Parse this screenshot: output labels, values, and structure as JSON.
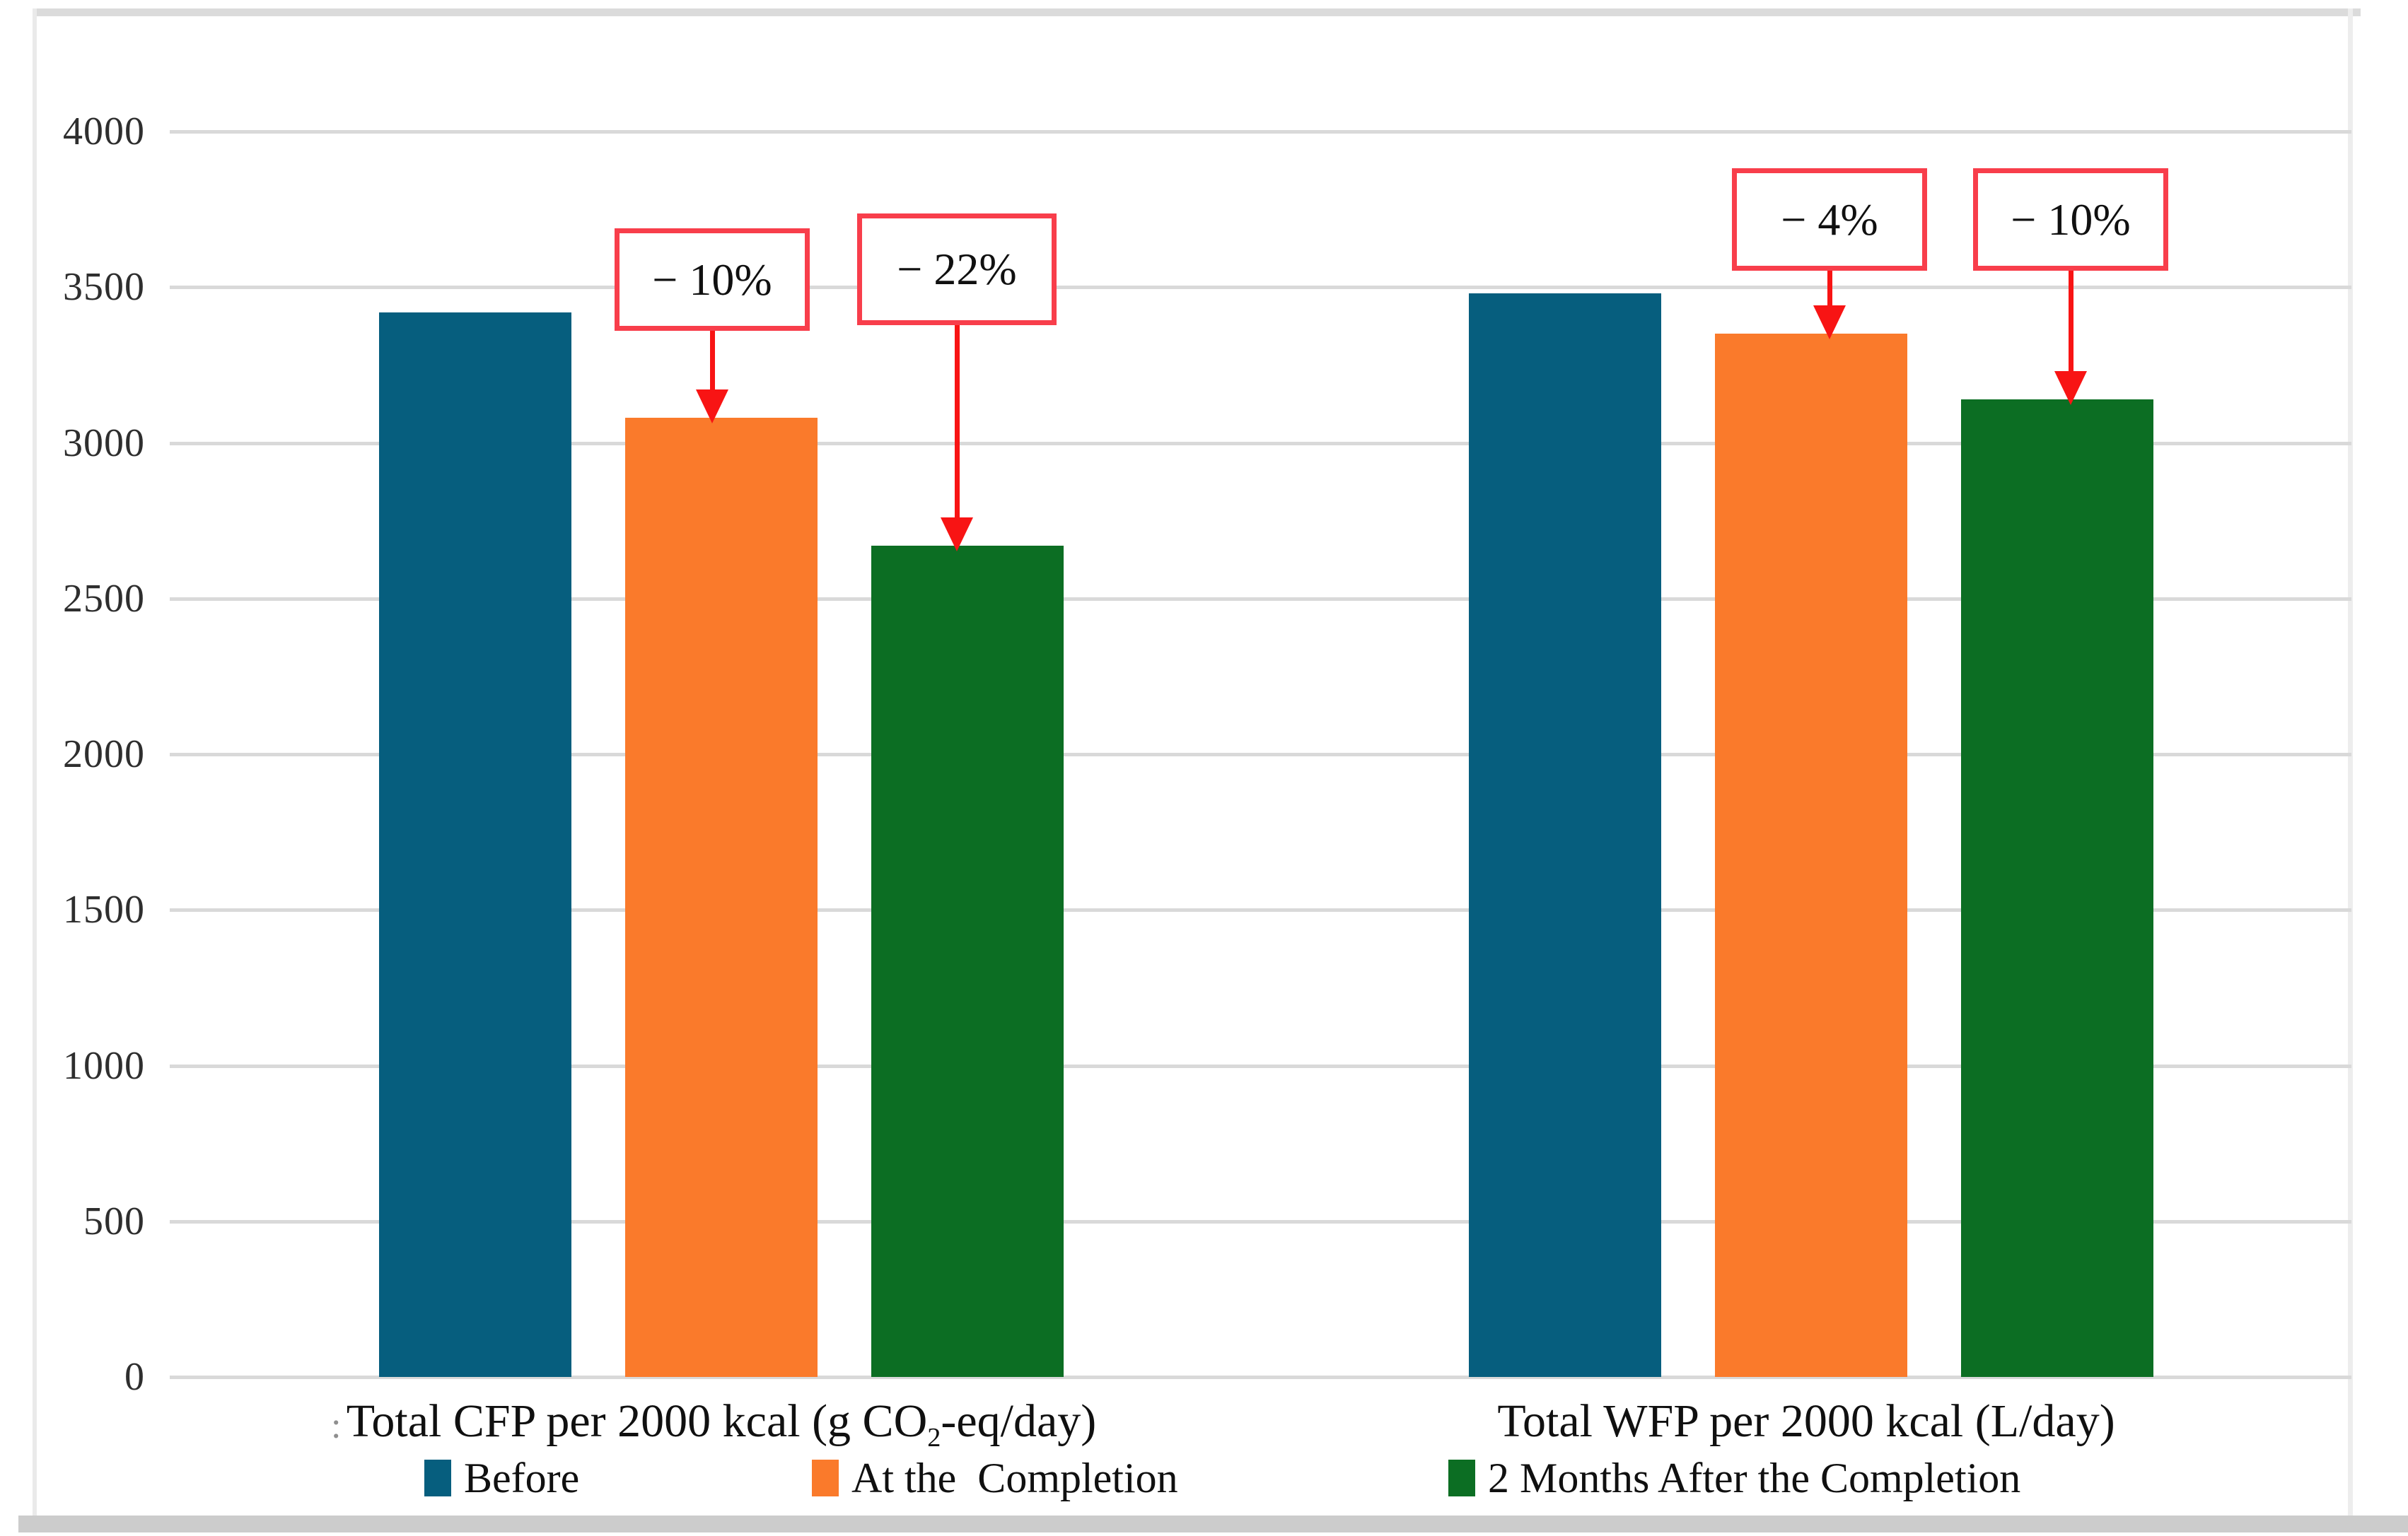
{
  "chart_data": {
    "type": "bar",
    "title": "",
    "categories": [
      {
        "label": "Total CFP per 2000 kcal (g CO2-eq/day)",
        "parts": [
          "Total CFP per 2000 kcal (g CO",
          "2",
          "-eq/day)"
        ]
      },
      {
        "label": "Total WFP per 2000 kcal (L/day)",
        "parts": [
          "Total WFP per 2000 kcal (L/day)"
        ]
      }
    ],
    "series": [
      {
        "name": "Before",
        "color": "#065E7E",
        "values": [
          3420,
          3480
        ]
      },
      {
        "name": "At the  Completion",
        "color": "#FA7A2B",
        "values": [
          3080,
          3350
        ]
      },
      {
        "name": "2 Months After the Completion",
        "color": "#0C6E23",
        "values": [
          2670,
          3140
        ]
      }
    ],
    "annotations": [
      {
        "text": "− 10%",
        "category": 0,
        "series": 1
      },
      {
        "text": "− 22%",
        "category": 0,
        "series": 2
      },
      {
        "text": "− 4%",
        "category": 1,
        "series": 1
      },
      {
        "text": "− 10%",
        "category": 1,
        "series": 2
      }
    ],
    "y_axis": {
      "min": 0,
      "max": 4000,
      "step": 500,
      "ticks": [
        "0",
        "500",
        "1000",
        "1500",
        "2000",
        "2500",
        "3000",
        "3500",
        "4000"
      ]
    },
    "grid": "horizontal-only",
    "legend_position": "bottom",
    "colors": {
      "annotation_border": "#F83E4B",
      "arrow": "#F81414",
      "gridline": "#D9D9D9",
      "tick_text": "#2E2E2E",
      "label_text": "#101010"
    },
    "stray_mark": ":"
  }
}
